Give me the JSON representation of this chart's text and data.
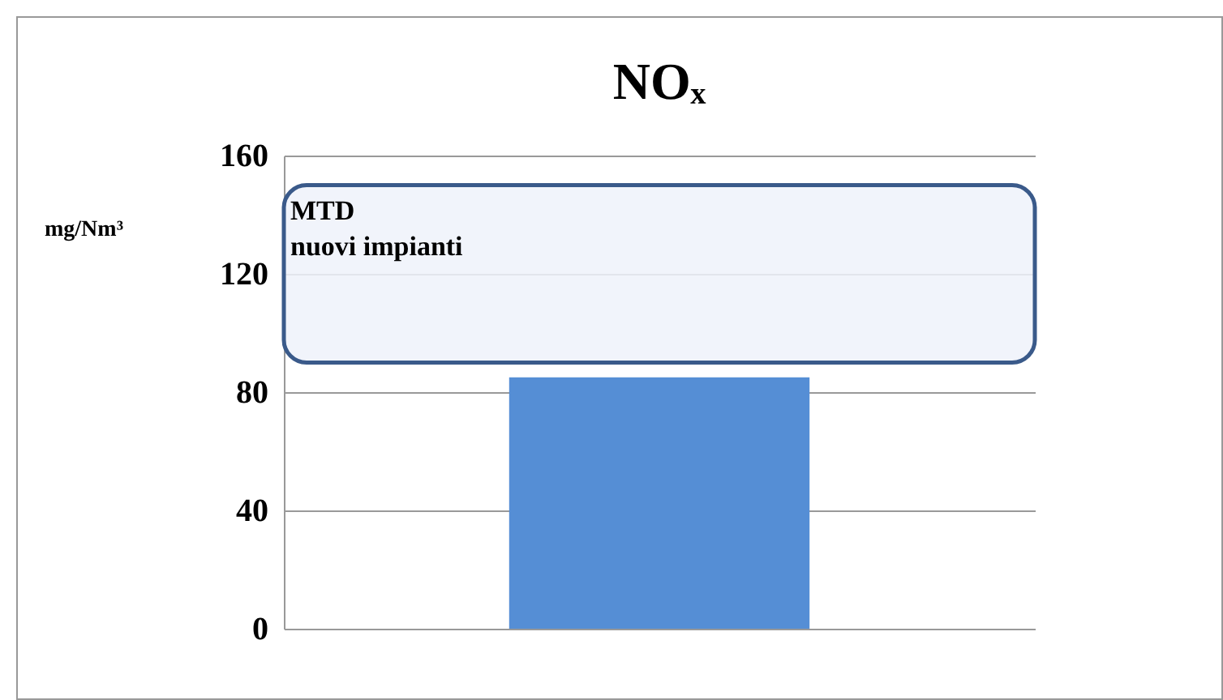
{
  "chart_data": {
    "type": "bar",
    "title": "NOₓ",
    "ylabel": "mg/Nm³",
    "categories": [
      null
    ],
    "values": [
      85
    ],
    "color": "#558ed5",
    "ylim": [
      0,
      160
    ],
    "yticks": [
      0,
      40,
      80,
      120,
      160
    ],
    "grid": "y",
    "bands": [
      {
        "axis": "y",
        "from": 90,
        "to": 150,
        "label": "MTD\nnuovi impianti",
        "color": "#eef2fa"
      }
    ]
  }
}
